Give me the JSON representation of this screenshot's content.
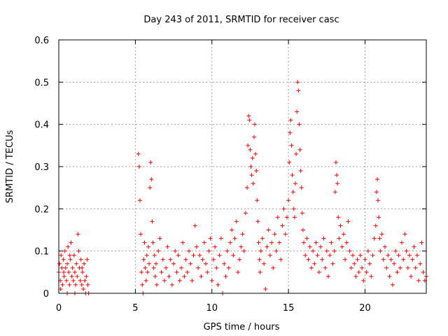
{
  "chart_data": {
    "type": "scatter",
    "title": "Day 243 of 2011, SRMTID for receiver casc",
    "xlabel": "GPS time / hours",
    "ylabel": "SRMTID / TECUs",
    "xlim": [
      0,
      24
    ],
    "ylim": [
      0,
      0.6
    ],
    "x_ticks": [
      0,
      5,
      10,
      15,
      20
    ],
    "x_tick_labels": [
      "0",
      "5",
      "10",
      "15",
      "20"
    ],
    "y_ticks": [
      0,
      0.1,
      0.2,
      0.3,
      0.4,
      0.5,
      0.6
    ],
    "y_tick_labels": [
      "0",
      "0.1",
      "0.2",
      "0.3",
      "0.4",
      "0.5",
      "0.6"
    ],
    "grid": true,
    "marker": "+",
    "color": "#ff0000",
    "series": [
      {
        "points": [
          [
            0.0,
            0.05
          ],
          [
            0.05,
            0.07
          ],
          [
            0.1,
            0.03
          ],
          [
            0.15,
            0.09
          ],
          [
            0.2,
            0.06
          ],
          [
            0.25,
            0.02
          ],
          [
            0.3,
            0.08
          ],
          [
            0.35,
            0.04
          ],
          [
            0.4,
            0.1
          ],
          [
            0.45,
            0.06
          ],
          [
            0.5,
            0.03
          ],
          [
            0.55,
            0.07
          ],
          [
            0.6,
            0.11
          ],
          [
            0.65,
            0.05
          ],
          [
            0.7,
            0.02
          ],
          [
            0.75,
            0.08
          ],
          [
            0.8,
            0.12
          ],
          [
            0.85,
            0.04
          ],
          [
            0.9,
            0.06
          ],
          [
            0.95,
            0.03
          ],
          [
            1.0,
            0.09
          ],
          [
            1.05,
            0.05
          ],
          [
            1.1,
            0.02
          ],
          [
            1.15,
            0.07
          ],
          [
            1.2,
            0.04
          ],
          [
            1.25,
            0.14
          ],
          [
            1.3,
            0.1
          ],
          [
            1.35,
            0.06
          ],
          [
            1.4,
            0.03
          ],
          [
            1.45,
            0.08
          ],
          [
            1.5,
            0.02
          ],
          [
            1.55,
            0.05
          ],
          [
            1.6,
            0.01
          ],
          [
            1.65,
            0.07
          ],
          [
            1.7,
            0.03
          ],
          [
            1.75,
            0.0
          ],
          [
            1.8,
            0.04
          ],
          [
            1.85,
            0.08
          ],
          [
            1.9,
            0.02
          ],
          [
            1.95,
            0.0
          ],
          [
            0.12,
            0.01
          ],
          [
            0.55,
            0.0
          ],
          [
            1.05,
            0.0
          ],
          [
            0.32,
            0.05
          ],
          [
            0.72,
            0.09
          ],
          [
            1.52,
            0.06
          ],
          [
            5.2,
            0.33
          ],
          [
            5.25,
            0.3
          ],
          [
            5.3,
            0.22
          ],
          [
            5.35,
            0.14
          ],
          [
            5.4,
            0.05
          ],
          [
            5.45,
            0.02
          ],
          [
            5.5,
            0.0
          ],
          [
            5.55,
            0.08
          ],
          [
            5.6,
            0.12
          ],
          [
            5.65,
            0.06
          ],
          [
            5.7,
            0.03
          ],
          [
            5.75,
            0.09
          ],
          [
            5.8,
            0.05
          ],
          [
            5.85,
            0.11
          ],
          [
            5.9,
            0.07
          ],
          [
            5.95,
            0.25
          ],
          [
            6.0,
            0.31
          ],
          [
            6.05,
            0.27
          ],
          [
            6.1,
            0.17
          ],
          [
            6.15,
            0.12
          ],
          [
            6.2,
            0.06
          ],
          [
            6.25,
            0.09
          ],
          [
            6.3,
            0.04
          ],
          [
            6.35,
            0.07
          ],
          [
            6.4,
            0.02
          ],
          [
            6.5,
            0.1
          ],
          [
            6.6,
            0.13
          ],
          [
            6.7,
            0.05
          ],
          [
            6.8,
            0.08
          ],
          [
            6.9,
            0.03
          ],
          [
            7.0,
            0.06
          ],
          [
            7.1,
            0.11
          ],
          [
            7.2,
            0.04
          ],
          [
            7.3,
            0.08
          ],
          [
            7.4,
            0.02
          ],
          [
            7.5,
            0.07
          ],
          [
            7.6,
            0.1
          ],
          [
            7.7,
            0.05
          ],
          [
            7.8,
            0.09
          ],
          [
            7.9,
            0.03
          ],
          [
            8.0,
            0.06
          ],
          [
            8.1,
            0.12
          ],
          [
            8.2,
            0.04
          ],
          [
            8.3,
            0.08
          ],
          [
            8.4,
            0.05
          ],
          [
            8.5,
            0.1
          ],
          [
            8.6,
            0.07
          ],
          [
            8.7,
            0.03
          ],
          [
            8.8,
            0.09
          ],
          [
            8.9,
            0.16
          ],
          [
            9.0,
            0.11
          ],
          [
            9.1,
            0.06
          ],
          [
            9.2,
            0.09
          ],
          [
            9.3,
            0.04
          ],
          [
            9.4,
            0.08
          ],
          [
            9.5,
            0.12
          ],
          [
            9.6,
            0.07
          ],
          [
            9.7,
            0.05
          ],
          [
            9.8,
            0.1
          ],
          [
            9.9,
            0.13
          ],
          [
            10.0,
            0.03
          ],
          [
            10.1,
            0.08
          ],
          [
            10.2,
            0.11
          ],
          [
            10.3,
            0.06
          ],
          [
            10.4,
            0.02
          ],
          [
            10.5,
            0.09
          ],
          [
            10.6,
            0.13
          ],
          [
            10.7,
            0.0
          ],
          [
            10.8,
            0.07
          ],
          [
            10.9,
            0.04
          ],
          [
            11.0,
            0.1
          ],
          [
            11.1,
            0.06
          ],
          [
            11.2,
            0.12
          ],
          [
            11.3,
            0.15
          ],
          [
            11.4,
            0.09
          ],
          [
            11.5,
            0.13
          ],
          [
            11.6,
            0.17
          ],
          [
            11.7,
            0.05
          ],
          [
            11.8,
            0.08
          ],
          [
            11.9,
            0.11
          ],
          [
            12.0,
            0.14
          ],
          [
            12.1,
            0.1
          ],
          [
            12.2,
            0.19
          ],
          [
            12.3,
            0.25
          ],
          [
            12.35,
            0.35
          ],
          [
            12.4,
            0.42
          ],
          [
            12.45,
            0.41
          ],
          [
            12.5,
            0.34
          ],
          [
            12.55,
            0.3
          ],
          [
            12.6,
            0.28
          ],
          [
            12.65,
            0.32
          ],
          [
            12.7,
            0.26
          ],
          [
            12.75,
            0.37
          ],
          [
            12.8,
            0.4
          ],
          [
            12.85,
            0.33
          ],
          [
            12.9,
            0.29
          ],
          [
            12.95,
            0.22
          ],
          [
            13.0,
            0.17
          ],
          [
            13.05,
            0.12
          ],
          [
            13.1,
            0.08
          ],
          [
            13.15,
            0.05
          ],
          [
            13.2,
            0.1
          ],
          [
            13.3,
            0.13
          ],
          [
            13.4,
            0.07
          ],
          [
            13.5,
            0.01
          ],
          [
            13.6,
            0.11
          ],
          [
            13.7,
            0.15
          ],
          [
            13.8,
            0.09
          ],
          [
            13.9,
            0.12
          ],
          [
            14.0,
            0.06
          ],
          [
            14.1,
            0.14
          ],
          [
            14.2,
            0.1
          ],
          [
            14.3,
            0.18
          ],
          [
            14.4,
            0.12
          ],
          [
            14.5,
            0.08
          ],
          [
            14.6,
            0.16
          ],
          [
            14.7,
            0.2
          ],
          [
            14.8,
            0.14
          ],
          [
            14.9,
            0.18
          ],
          [
            15.0,
            0.22
          ],
          [
            15.05,
            0.31
          ],
          [
            15.1,
            0.38
          ],
          [
            15.15,
            0.41
          ],
          [
            15.2,
            0.35
          ],
          [
            15.25,
            0.28
          ],
          [
            15.3,
            0.24
          ],
          [
            15.35,
            0.2
          ],
          [
            15.4,
            0.18
          ],
          [
            15.45,
            0.26
          ],
          [
            15.5,
            0.33
          ],
          [
            15.55,
            0.43
          ],
          [
            15.6,
            0.5
          ],
          [
            15.65,
            0.48
          ],
          [
            15.7,
            0.4
          ],
          [
            15.75,
            0.34
          ],
          [
            15.8,
            0.29
          ],
          [
            15.85,
            0.25
          ],
          [
            15.9,
            0.19
          ],
          [
            15.95,
            0.15
          ],
          [
            16.0,
            0.12
          ],
          [
            16.1,
            0.09
          ],
          [
            16.2,
            0.13
          ],
          [
            16.3,
            0.08
          ],
          [
            16.4,
            0.11
          ],
          [
            16.5,
            0.06
          ],
          [
            16.6,
            0.1
          ],
          [
            16.7,
            0.07
          ],
          [
            16.8,
            0.12
          ],
          [
            16.9,
            0.09
          ],
          [
            17.0,
            0.05
          ],
          [
            17.1,
            0.11
          ],
          [
            17.2,
            0.08
          ],
          [
            17.3,
            0.13
          ],
          [
            17.4,
            0.06
          ],
          [
            17.5,
            0.1
          ],
          [
            17.6,
            0.04
          ],
          [
            17.7,
            0.09
          ],
          [
            17.8,
            0.12
          ],
          [
            17.9,
            0.07
          ],
          [
            18.0,
            0.1
          ],
          [
            18.05,
            0.24
          ],
          [
            18.1,
            0.31
          ],
          [
            18.15,
            0.28
          ],
          [
            18.2,
            0.26
          ],
          [
            18.25,
            0.18
          ],
          [
            18.3,
            0.13
          ],
          [
            18.4,
            0.16
          ],
          [
            18.5,
            0.11
          ],
          [
            18.6,
            0.14
          ],
          [
            18.7,
            0.08
          ],
          [
            18.8,
            0.12
          ],
          [
            18.9,
            0.17
          ],
          [
            19.0,
            0.1
          ],
          [
            19.1,
            0.06
          ],
          [
            19.2,
            0.09
          ],
          [
            19.3,
            0.07
          ],
          [
            19.4,
            0.04
          ],
          [
            19.5,
            0.08
          ],
          [
            19.6,
            0.05
          ],
          [
            19.7,
            0.09
          ],
          [
            19.8,
            0.06
          ],
          [
            19.9,
            0.03
          ],
          [
            20.0,
            0.08
          ],
          [
            20.1,
            0.05
          ],
          [
            20.2,
            0.1
          ],
          [
            20.3,
            0.07
          ],
          [
            20.4,
            0.04
          ],
          [
            20.5,
            0.09
          ],
          [
            20.6,
            0.13
          ],
          [
            20.7,
            0.16
          ],
          [
            20.75,
            0.24
          ],
          [
            20.8,
            0.27
          ],
          [
            20.85,
            0.22
          ],
          [
            20.9,
            0.18
          ],
          [
            20.95,
            0.13
          ],
          [
            21.0,
            0.1
          ],
          [
            21.1,
            0.14
          ],
          [
            21.2,
            0.08
          ],
          [
            21.3,
            0.11
          ],
          [
            21.4,
            0.06
          ],
          [
            21.5,
            0.09
          ],
          [
            21.6,
            0.04
          ],
          [
            21.7,
            0.08
          ],
          [
            21.8,
            0.02
          ],
          [
            21.9,
            0.07
          ],
          [
            22.0,
            0.1
          ],
          [
            22.1,
            0.05
          ],
          [
            22.2,
            0.09
          ],
          [
            22.3,
            0.06
          ],
          [
            22.4,
            0.12
          ],
          [
            22.5,
            0.08
          ],
          [
            22.6,
            0.14
          ],
          [
            22.7,
            0.1
          ],
          [
            22.8,
            0.06
          ],
          [
            22.9,
            0.09
          ],
          [
            23.0,
            0.04
          ],
          [
            23.1,
            0.08
          ],
          [
            23.2,
            0.11
          ],
          [
            23.3,
            0.06
          ],
          [
            23.4,
            0.09
          ],
          [
            23.5,
            0.03
          ],
          [
            23.6,
            0.07
          ],
          [
            23.7,
            0.12
          ],
          [
            23.8,
            0.05
          ],
          [
            23.9,
            0.03
          ],
          [
            24.0,
            0.04
          ]
        ]
      }
    ]
  }
}
